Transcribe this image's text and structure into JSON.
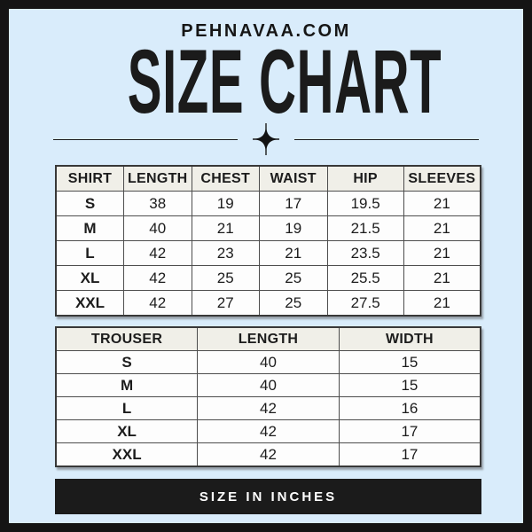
{
  "brand": "PEHNAVAA.COM",
  "title": "SIZE CHART",
  "footer": {
    "label": "SIZE IN INCHES"
  },
  "colors": {
    "background": "#d9ecfb",
    "frame": "#141414",
    "table_header_bg": "#f0efe8",
    "table_body_bg": "#fdfdfd",
    "table_border": "#4d4d4d",
    "banner_bg": "#1b1b1b",
    "banner_text": "#ffffff",
    "text": "#1c1c1c"
  },
  "chart_data": [
    {
      "type": "table",
      "title": "SHIRT",
      "columns": [
        "SHIRT",
        "LENGTH",
        "CHEST",
        "WAIST",
        "HIP",
        "SLEEVES"
      ],
      "rows": [
        [
          "S",
          "38",
          "19",
          "17",
          "19.5",
          "21"
        ],
        [
          "M",
          "40",
          "21",
          "19",
          "21.5",
          "21"
        ],
        [
          "L",
          "42",
          "23",
          "21",
          "23.5",
          "21"
        ],
        [
          "XL",
          "42",
          "25",
          "25",
          "25.5",
          "21"
        ],
        [
          "XXL",
          "42",
          "27",
          "25",
          "27.5",
          "21"
        ]
      ]
    },
    {
      "type": "table",
      "title": "TROUSER",
      "columns": [
        "TROUSER",
        "LENGTH",
        "WIDTH"
      ],
      "rows": [
        [
          "S",
          "40",
          "15"
        ],
        [
          "M",
          "40",
          "15"
        ],
        [
          "L",
          "42",
          "16"
        ],
        [
          "XL",
          "42",
          "17"
        ],
        [
          "XXL",
          "42",
          "17"
        ]
      ]
    }
  ],
  "unit_note": "SIZE IN INCHES"
}
